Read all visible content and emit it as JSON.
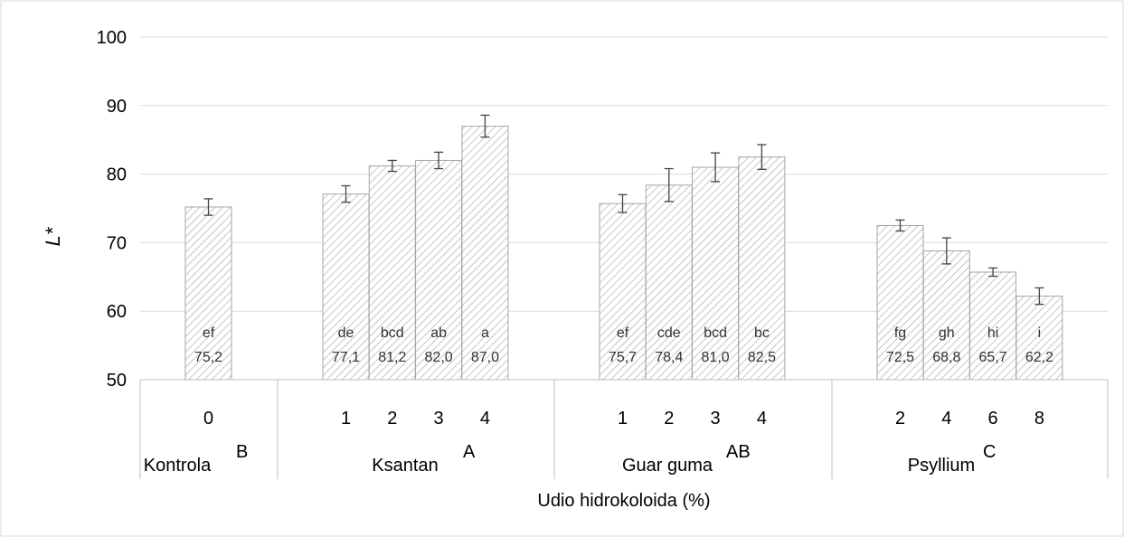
{
  "chart_data": {
    "type": "bar",
    "ylabel": "L*",
    "xlabel": "Udio hidrokoloida (%)",
    "ylim": [
      50,
      100
    ],
    "yticks": [
      50,
      60,
      70,
      80,
      90,
      100
    ],
    "grid": true,
    "groups": [
      {
        "name": "Kontrola",
        "sup": "B",
        "bars": [
          {
            "category": "0",
            "value": 75.2,
            "error": 1.2,
            "letter": "ef",
            "label": "75,2"
          }
        ]
      },
      {
        "name": "Ksantan",
        "sup": "A",
        "bars": [
          {
            "category": "1",
            "value": 77.1,
            "error": 1.2,
            "letter": "de",
            "label": "77,1"
          },
          {
            "category": "2",
            "value": 81.2,
            "error": 0.8,
            "letter": "bcd",
            "label": "81,2"
          },
          {
            "category": "3",
            "value": 82.0,
            "error": 1.2,
            "letter": "ab",
            "label": "82,0"
          },
          {
            "category": "4",
            "value": 87.0,
            "error": 1.6,
            "letter": "a",
            "label": "87,0"
          }
        ]
      },
      {
        "name": "Guar guma",
        "sup": "AB",
        "bars": [
          {
            "category": "1",
            "value": 75.7,
            "error": 1.3,
            "letter": "ef",
            "label": "75,7"
          },
          {
            "category": "2",
            "value": 78.4,
            "error": 2.4,
            "letter": "cde",
            "label": "78,4"
          },
          {
            "category": "3",
            "value": 81.0,
            "error": 2.1,
            "letter": "bcd",
            "label": "81,0"
          },
          {
            "category": "4",
            "value": 82.5,
            "error": 1.8,
            "letter": "bc",
            "label": "82,5"
          }
        ]
      },
      {
        "name": "Psyllium",
        "sup": "C",
        "bars": [
          {
            "category": "2",
            "value": 72.5,
            "error": 0.8,
            "letter": "fg",
            "label": "72,5"
          },
          {
            "category": "4",
            "value": 68.8,
            "error": 1.9,
            "letter": "gh",
            "label": "68,8"
          },
          {
            "category": "6",
            "value": 65.7,
            "error": 0.6,
            "letter": "hi",
            "label": "65,7"
          },
          {
            "category": "8",
            "value": 62.2,
            "error": 1.2,
            "letter": "i",
            "label": "62,2"
          }
        ]
      }
    ]
  }
}
